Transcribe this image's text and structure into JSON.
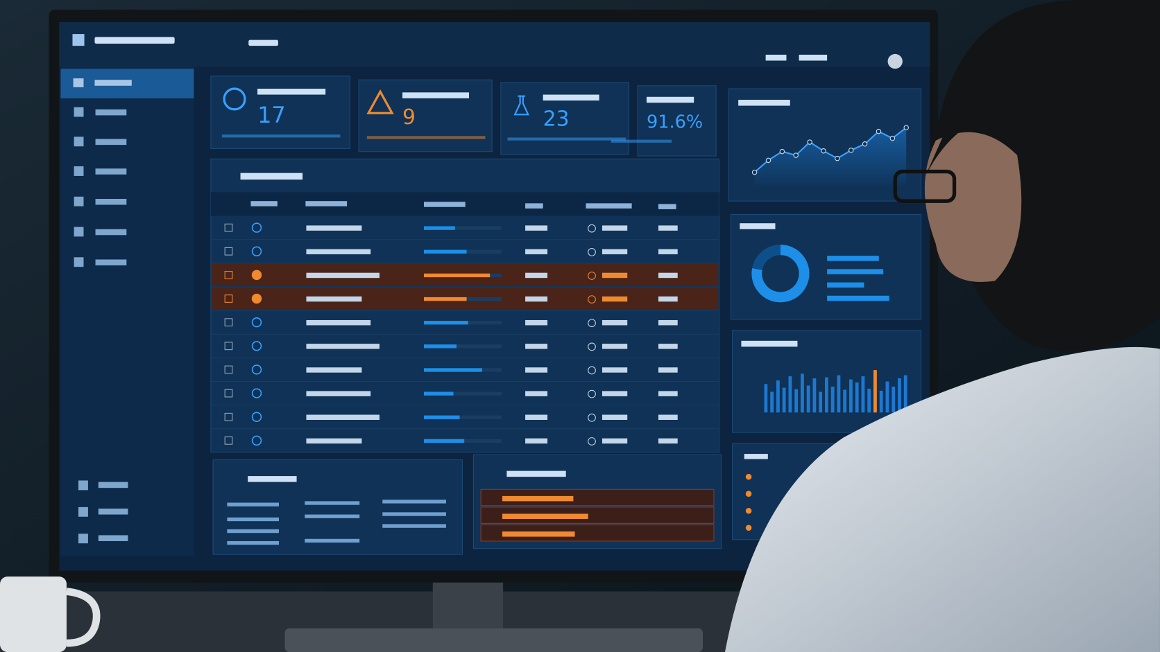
{
  "kpis": [
    {
      "value": "17",
      "color": "#3aa0ff"
    },
    {
      "value": "9",
      "color": "#f08a30"
    },
    {
      "value": "23",
      "color": "#3aa0ff"
    },
    {
      "value": "91.6%",
      "color": "#3aa0ff"
    }
  ],
  "table": {
    "rows": [
      {
        "progress": 40,
        "color": "#1e8fe8"
      },
      {
        "progress": 55,
        "color": "#1e8fe8"
      },
      {
        "progress": 85,
        "color": "#f08a30"
      },
      {
        "progress": 55,
        "color": "#f08a30"
      },
      {
        "progress": 57,
        "color": "#1e8fe8"
      },
      {
        "progress": 42,
        "color": "#1e8fe8"
      },
      {
        "progress": 75,
        "color": "#1e8fe8"
      },
      {
        "progress": 38,
        "color": "#1e8fe8"
      },
      {
        "progress": 46,
        "color": "#1e8fe8"
      },
      {
        "progress": 52,
        "color": "#1e8fe8"
      }
    ]
  },
  "line_chart": {
    "values": [
      20,
      39,
      53,
      47,
      68,
      54,
      42,
      55,
      65,
      85,
      74,
      91
    ],
    "ylim": [
      0,
      100
    ],
    "color": "#3aa0ff"
  },
  "donut": {
    "values": [
      78,
      22
    ],
    "colors": [
      "#1e8fe8",
      "#0d4f8a"
    ]
  },
  "bar_chart": {
    "values": [
      55,
      40,
      62,
      48,
      70,
      45,
      75,
      52,
      66,
      40,
      68,
      50,
      72,
      44,
      64,
      58,
      70,
      46,
      82,
      42,
      60,
      50,
      66,
      72
    ],
    "ylim": [
      0,
      100
    ],
    "colors": [
      "#1e78d0",
      "#f08a30"
    ],
    "highlight": 18
  }
}
